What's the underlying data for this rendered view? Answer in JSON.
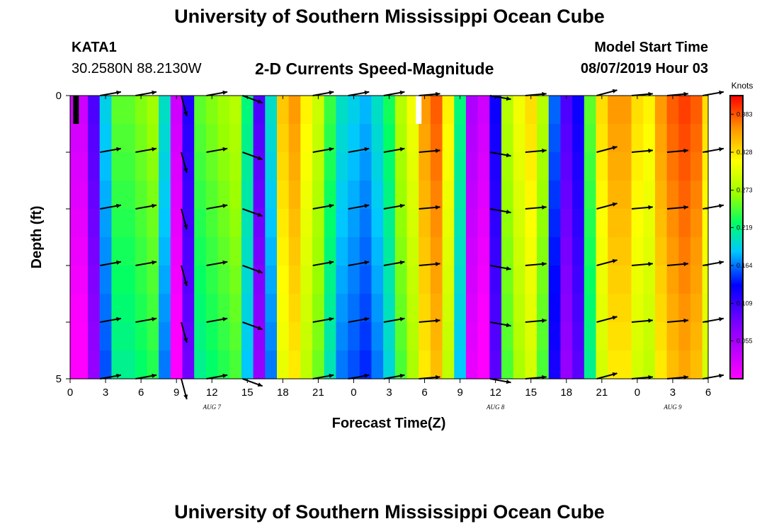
{
  "header": {
    "title": "University of Southern Mississippi Ocean Cube",
    "station_id": "KATA1",
    "station_coords": "30.2580N 88.2130W",
    "subtitle": "2-D Currents Speed-Magnitude",
    "model_start_label": "Model Start Time",
    "model_start_value": "08/07/2019 Hour 03"
  },
  "footer": {
    "title": "University of Southern Mississippi Ocean Cube"
  },
  "chart_data": {
    "type": "heatmap",
    "title": "2-D Currents Speed-Magnitude",
    "xlabel": "Forecast Time(Z)",
    "ylabel": "Depth (ft)",
    "x_range_hours": [
      0,
      54
    ],
    "y_range_ft": [
      0,
      5
    ],
    "y_ticks": [
      "0",
      "5"
    ],
    "x_tick_labels": [
      "0",
      "3",
      "6",
      "9",
      "12",
      "15",
      "18",
      "21",
      "0",
      "3",
      "6",
      "9",
      "12",
      "15",
      "18",
      "21",
      "0",
      "3",
      "6"
    ],
    "date_labels": [
      {
        "label": "AUG 7",
        "hour": 12
      },
      {
        "label": "AUG 8",
        "hour": 36
      },
      {
        "label": "AUG 9",
        "hour": 51
      }
    ],
    "colorbar": {
      "title": "Knots",
      "min": 0,
      "max": 0.41,
      "tick_labels": [
        "0.383",
        "0.328",
        "0.273",
        "0.219",
        "0.164",
        "0.109",
        "0.055"
      ],
      "tick_values": [
        0.383,
        0.328,
        0.273,
        0.219,
        0.164,
        0.109,
        0.055
      ]
    },
    "speed_by_hour": [
      0.03,
      0.03,
      0.1,
      0.19,
      0.25,
      0.25,
      0.26,
      0.27,
      0.2,
      0.03,
      0.12,
      0.25,
      0.26,
      0.27,
      0.28,
      0.22,
      0.1,
      0.2,
      0.34,
      0.36,
      0.32,
      0.29,
      0.24,
      0.2,
      0.19,
      0.18,
      0.2,
      0.23,
      0.28,
      0.31,
      0.36,
      0.38,
      0.32,
      0.22,
      0.05,
      0.03,
      0.13,
      0.28,
      0.31,
      0.33,
      0.28,
      0.16,
      0.1,
      0.13,
      0.25,
      0.33,
      0.36,
      0.36,
      0.33,
      0.32,
      0.36,
      0.38,
      0.39,
      0.38,
      0.33
    ],
    "vector_times": [
      3,
      6,
      9,
      12,
      15,
      18,
      21,
      24,
      27,
      30,
      33,
      36,
      39,
      42,
      45,
      48,
      51,
      54
    ],
    "vector_depths_ft": [
      0,
      1,
      2,
      3,
      4,
      5
    ],
    "vector_directions_deg": [
      10,
      10,
      -75,
      10,
      -20,
      null,
      10,
      10,
      10,
      5,
      null,
      -10,
      5,
      null,
      15,
      5,
      5,
      10
    ],
    "missing_markers": [
      {
        "hour": 0.5,
        "color": "#000000"
      },
      {
        "hour": 29.5,
        "color": "#ffffff"
      }
    ]
  }
}
